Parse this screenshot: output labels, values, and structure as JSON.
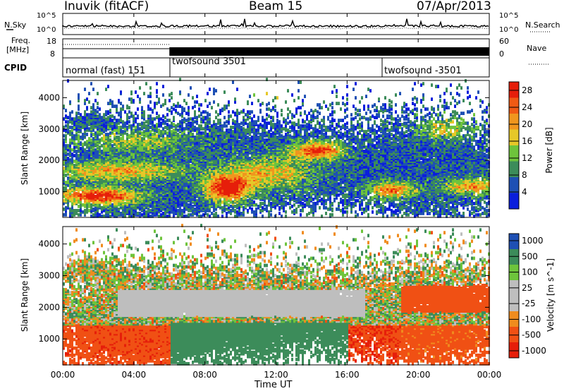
{
  "header": {
    "station": "Inuvik (fitACF)",
    "beam": "Beam 15",
    "date": "07/Apr/2013"
  },
  "noise_panel": {
    "left_label": "N.Sky",
    "right_label": "N.Search",
    "y_ticks_left": [
      "10^5",
      "10^0"
    ],
    "y_ticks_right": [
      "10^5",
      "10^0"
    ]
  },
  "freq_panel": {
    "left_label_top": "Freq.",
    "left_label_bottom": "[MHz]",
    "right_label": "Nave",
    "y_ticks_left": [
      "18",
      "8"
    ],
    "y_ticks_right": [
      "60",
      "0"
    ]
  },
  "cpid_panel": {
    "label": "CPID",
    "segments": [
      {
        "name": "normal (fast) 151",
        "start_hour": 0
      },
      {
        "name": "twofsound 3501",
        "start_hour": 6
      },
      {
        "name": "twofsound -3501",
        "start_hour": 18
      }
    ]
  },
  "colors": {
    "power": [
      "#0a1edc",
      "#1e50b4",
      "#3c8c5a",
      "#6ec43c",
      "#e6c828",
      "#f0961e",
      "#f05a14",
      "#e61e0a"
    ],
    "velocity": [
      "#e61e0a",
      "#f05014",
      "#f08c1e",
      "#bebebe",
      "#bebebe",
      "#6ec43c",
      "#3c8c5a",
      "#1e50b4"
    ]
  },
  "x_axis": {
    "label": "Time UT",
    "ticks": [
      "00:00",
      "04:00",
      "08:00",
      "12:00",
      "16:00",
      "20:00",
      "00:00"
    ],
    "range_hours": [
      0,
      24
    ]
  },
  "chart_data": [
    {
      "type": "heatmap",
      "title": "Power",
      "ylabel": "Slant Range [km]",
      "ylim": [
        180,
        4550
      ],
      "y_ticks": [
        1000,
        2000,
        3000,
        4000
      ],
      "colorbar": {
        "label": "Power [dB]",
        "ticks": [
          "4",
          "8",
          "12",
          "16",
          "20",
          "24",
          "28"
        ],
        "range": [
          0,
          30
        ]
      }
    },
    {
      "type": "heatmap",
      "title": "Velocity",
      "ylabel": "Slant Range [km]",
      "ylim": [
        180,
        4550
      ],
      "y_ticks": [
        1000,
        2000,
        3000,
        4000
      ],
      "colorbar": {
        "label": "Velocity [m s^-1]",
        "ticks": [
          "1000",
          "500",
          "100",
          "25",
          "-25",
          "-100",
          "-500",
          "-1000"
        ]
      }
    }
  ]
}
